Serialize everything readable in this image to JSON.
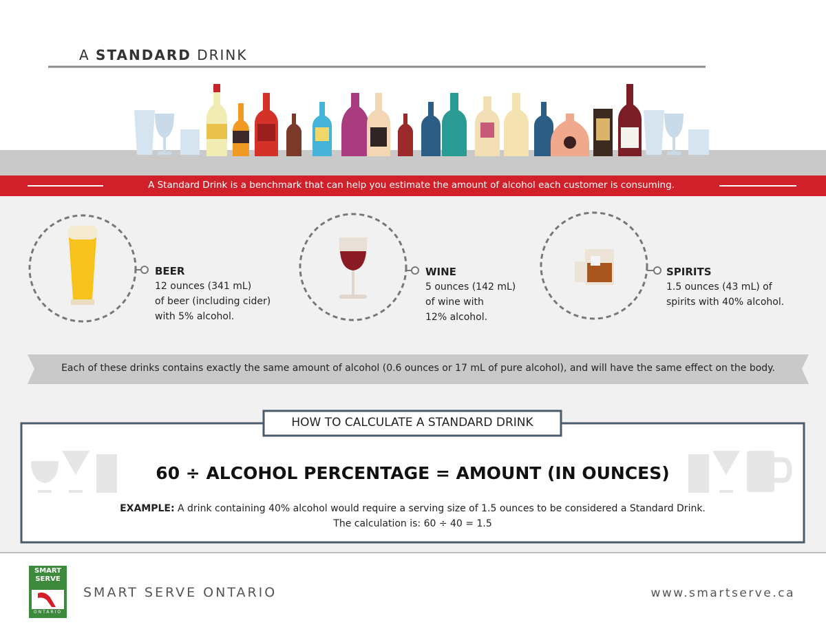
{
  "header": {
    "title": {
      "prefix": "A",
      "bold": "STANDARD",
      "suffix": "DRINK"
    }
  },
  "banner": "A Standard Drink is a benchmark that can help you estimate the amount of alcohol each customer is consuming.",
  "drinks": [
    {
      "name": "BEER",
      "lines": [
        "12 ounces (341 mL)",
        "of beer (including cider)",
        "with 5% alcohol."
      ]
    },
    {
      "name": "WINE",
      "lines": [
        "5 ounces (142 mL)",
        "of wine with",
        "12% alcohol."
      ]
    },
    {
      "name": "SPIRITS",
      "lines": [
        "1.5 ounces (43 mL) of",
        "spirits with 40% alcohol."
      ]
    }
  ],
  "note": "Each of these drinks contains exactly the same amount of alcohol (0.6 ounces or 17 mL of pure alcohol), and will have the same effect on the body.",
  "calculation": {
    "heading": "HOW TO CALCULATE A STANDARD DRINK",
    "formula": "60 ÷ ALCOHOL PERCENTAGE = AMOUNT (IN OUNCES)",
    "example_label": "EXAMPLE:",
    "example_text": "A drink containing 40% alcohol would require a serving size of 1.5 ounces to be considered a Standard Drink.",
    "calculation_line": "The calculation is: 60 ÷ 40 = 1.5"
  },
  "footer": {
    "logo": [
      "SMART",
      "SERVE",
      "ONTARIO"
    ],
    "organization": "SMART SERVE ONTARIO",
    "url": "www.smartserve.ca"
  }
}
